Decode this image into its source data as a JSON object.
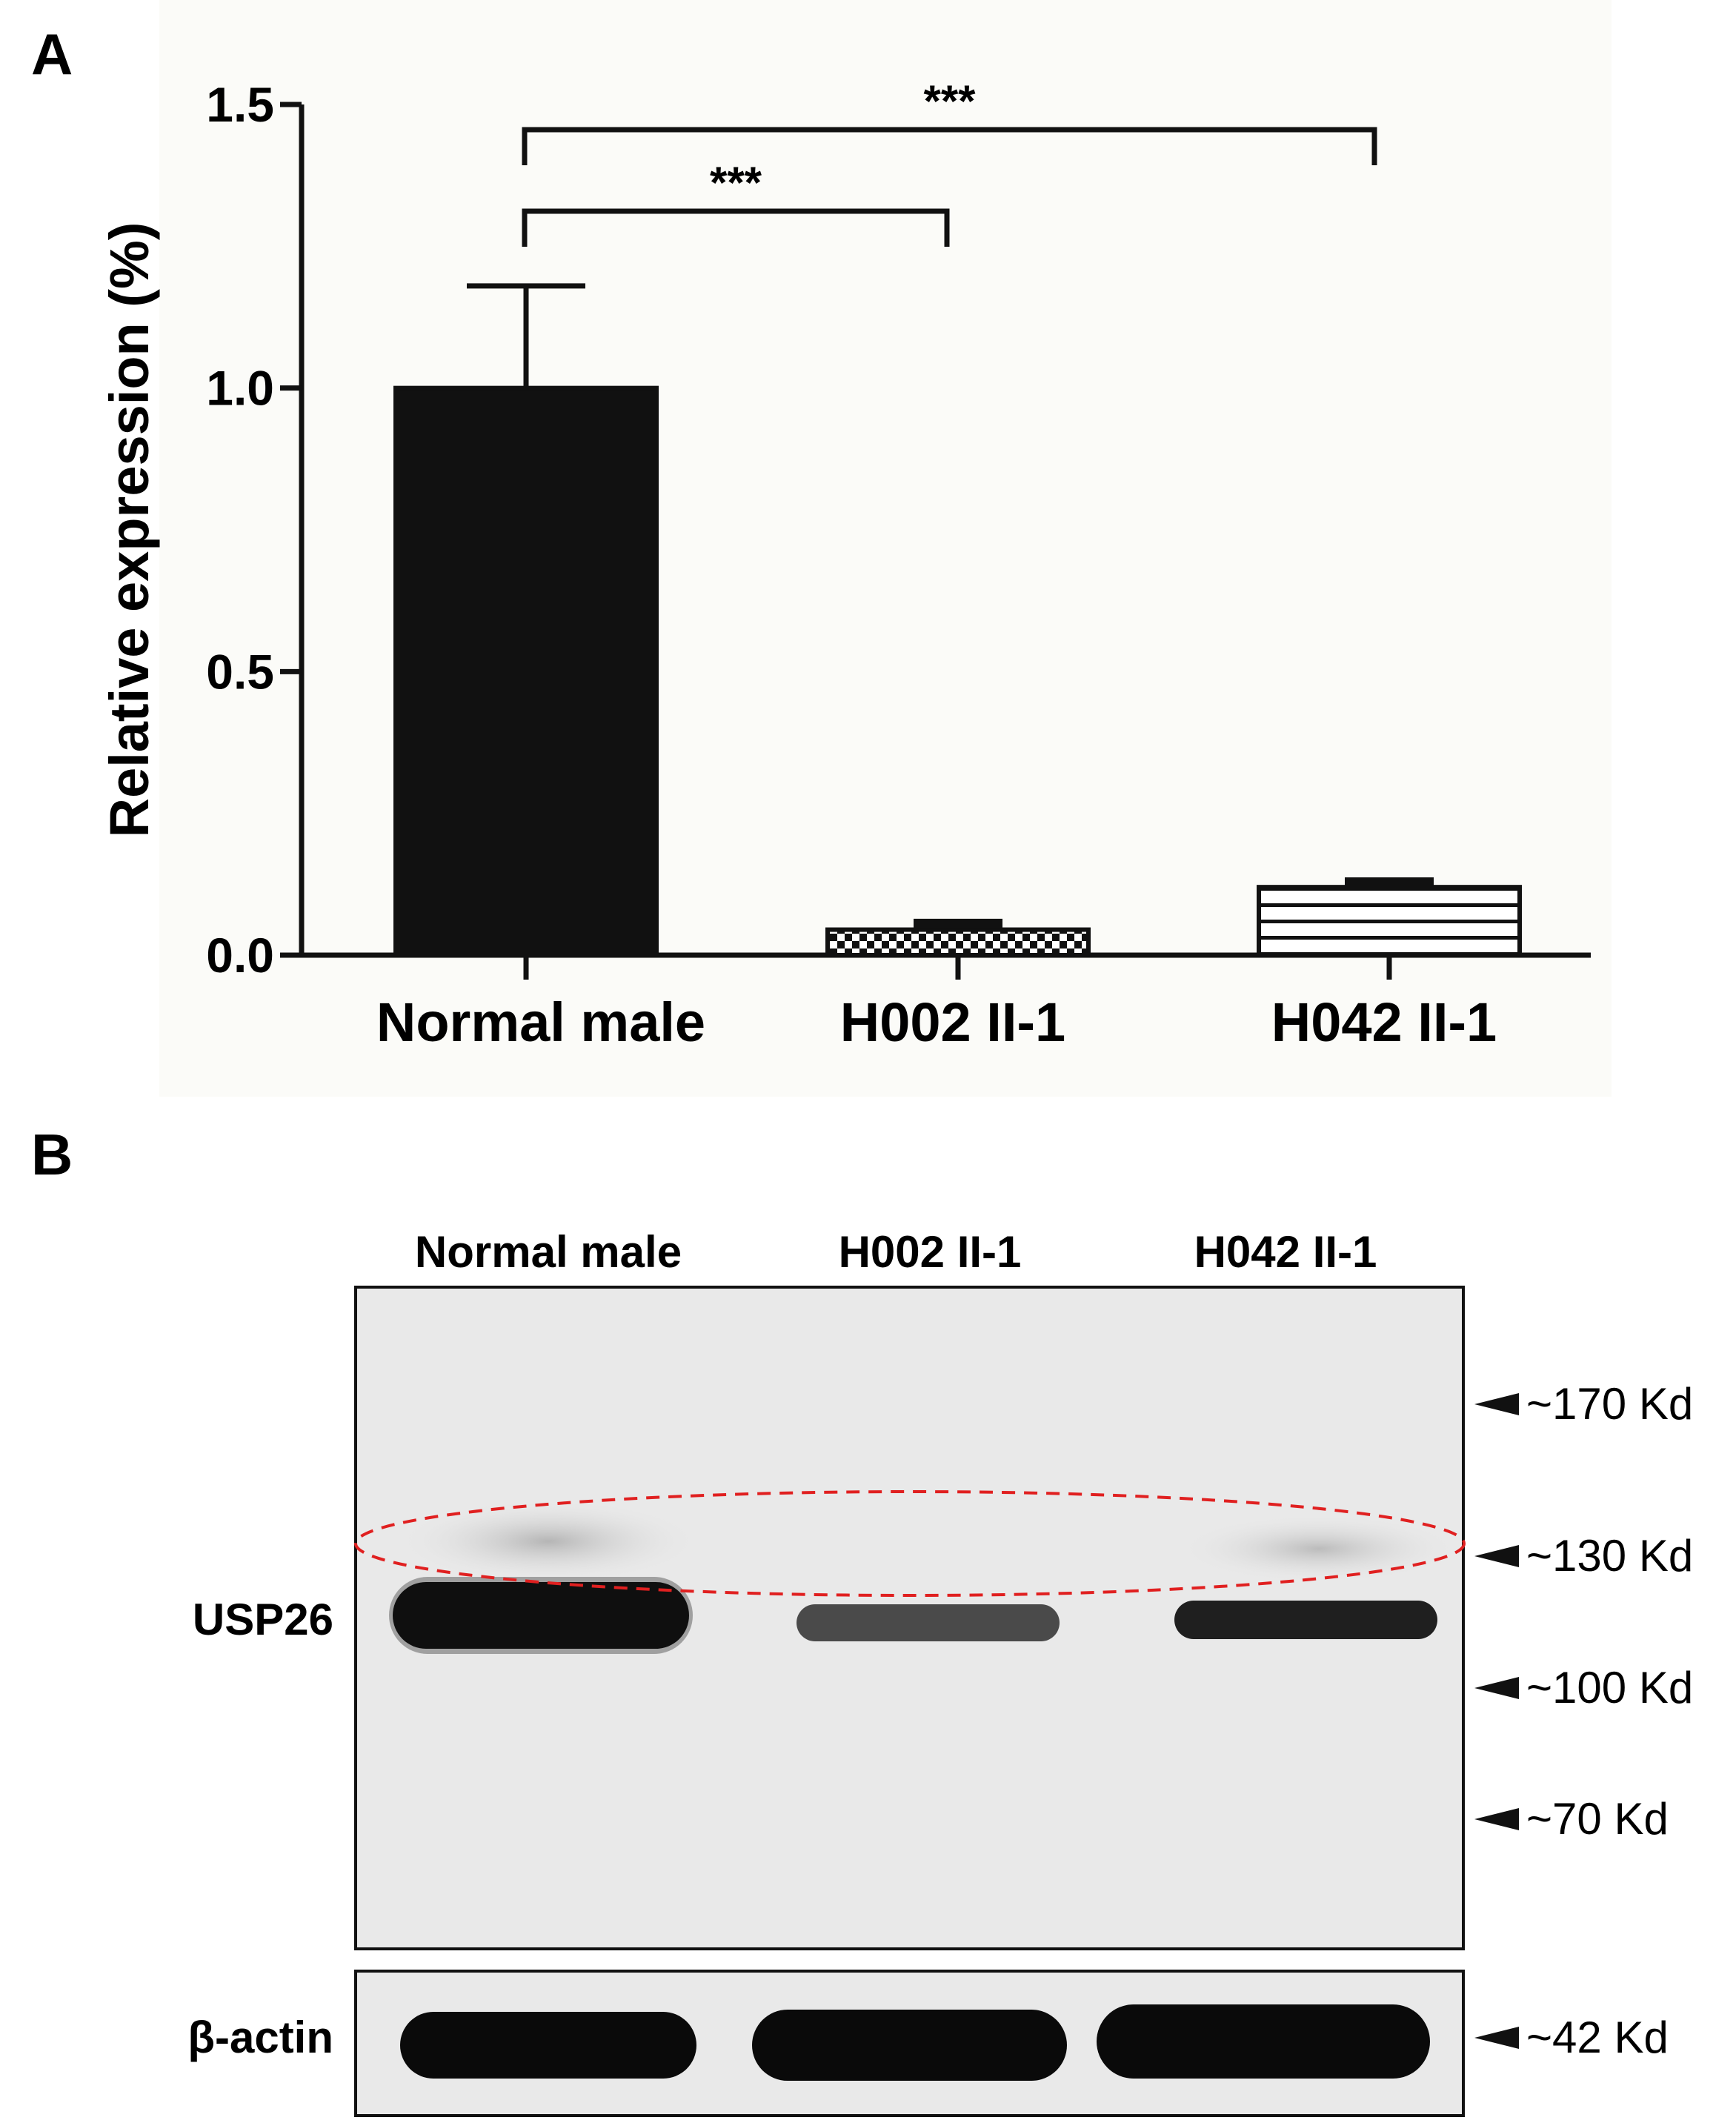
{
  "panels": {
    "a_letter": "A",
    "b_letter": "B"
  },
  "chart_data": {
    "type": "bar",
    "title": "",
    "xlabel": "",
    "ylabel": "Relative expression (%)",
    "ylim": [
      0,
      1.5
    ],
    "yticks": [
      0.0,
      0.5,
      1.0,
      1.5
    ],
    "ytick_labels": [
      "0.0",
      "0.5",
      "1.0",
      "1.5"
    ],
    "categories": [
      "Normal male",
      "H002 II-1",
      "H042 II-1"
    ],
    "values": [
      1.0,
      0.045,
      0.12
    ],
    "errors": [
      0.18,
      0.01,
      0.008
    ],
    "fills": [
      "solid",
      "checker",
      "horizontal-stripes"
    ],
    "significance": [
      {
        "from": 0,
        "to": 1,
        "label": "***"
      },
      {
        "from": 0,
        "to": 2,
        "label": "***"
      }
    ],
    "grid": false,
    "legend": "none",
    "colors": {
      "bar": "#111111",
      "background": "#ffffff",
      "panel_bg": "#fbfbf8"
    }
  },
  "western_blot": {
    "lanes": [
      "Normal male",
      "H002 II-1",
      "H042 II-1"
    ],
    "rows": [
      "USP26",
      "β-actin"
    ],
    "markers": [
      "~170 Kd",
      "~130 Kd",
      "~100 Kd",
      "~70 Kd",
      "~42 Kd"
    ],
    "highlight_color": "#e02020"
  }
}
